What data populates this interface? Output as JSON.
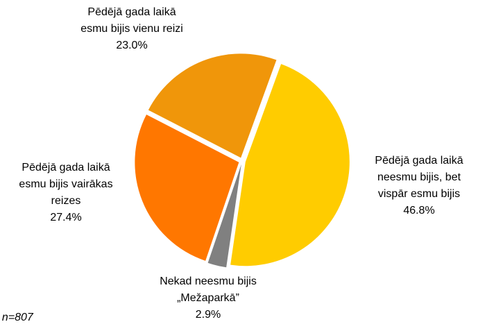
{
  "chart_data": {
    "type": "pie",
    "categories": [
      "Pēdējā gada laikā\nneesmu bijis, bet\nvispār esmu bijis",
      "Nekad neesmu bijis\n„Mežaparkā”",
      "Pēdējā gada laikā\nesmu bijis vairākas\nreizes",
      "Pēdējā gada laikā\nesmu bijis vienu reizi"
    ],
    "values": [
      46.8,
      2.9,
      27.4,
      23.0
    ],
    "value_labels": [
      "46.8%",
      "2.9%",
      "27.4%",
      "23.0%"
    ],
    "colors": [
      "#ffcc00",
      "#808080",
      "#ff7700",
      "#f0960a"
    ],
    "note": "ti, n=807"
  }
}
